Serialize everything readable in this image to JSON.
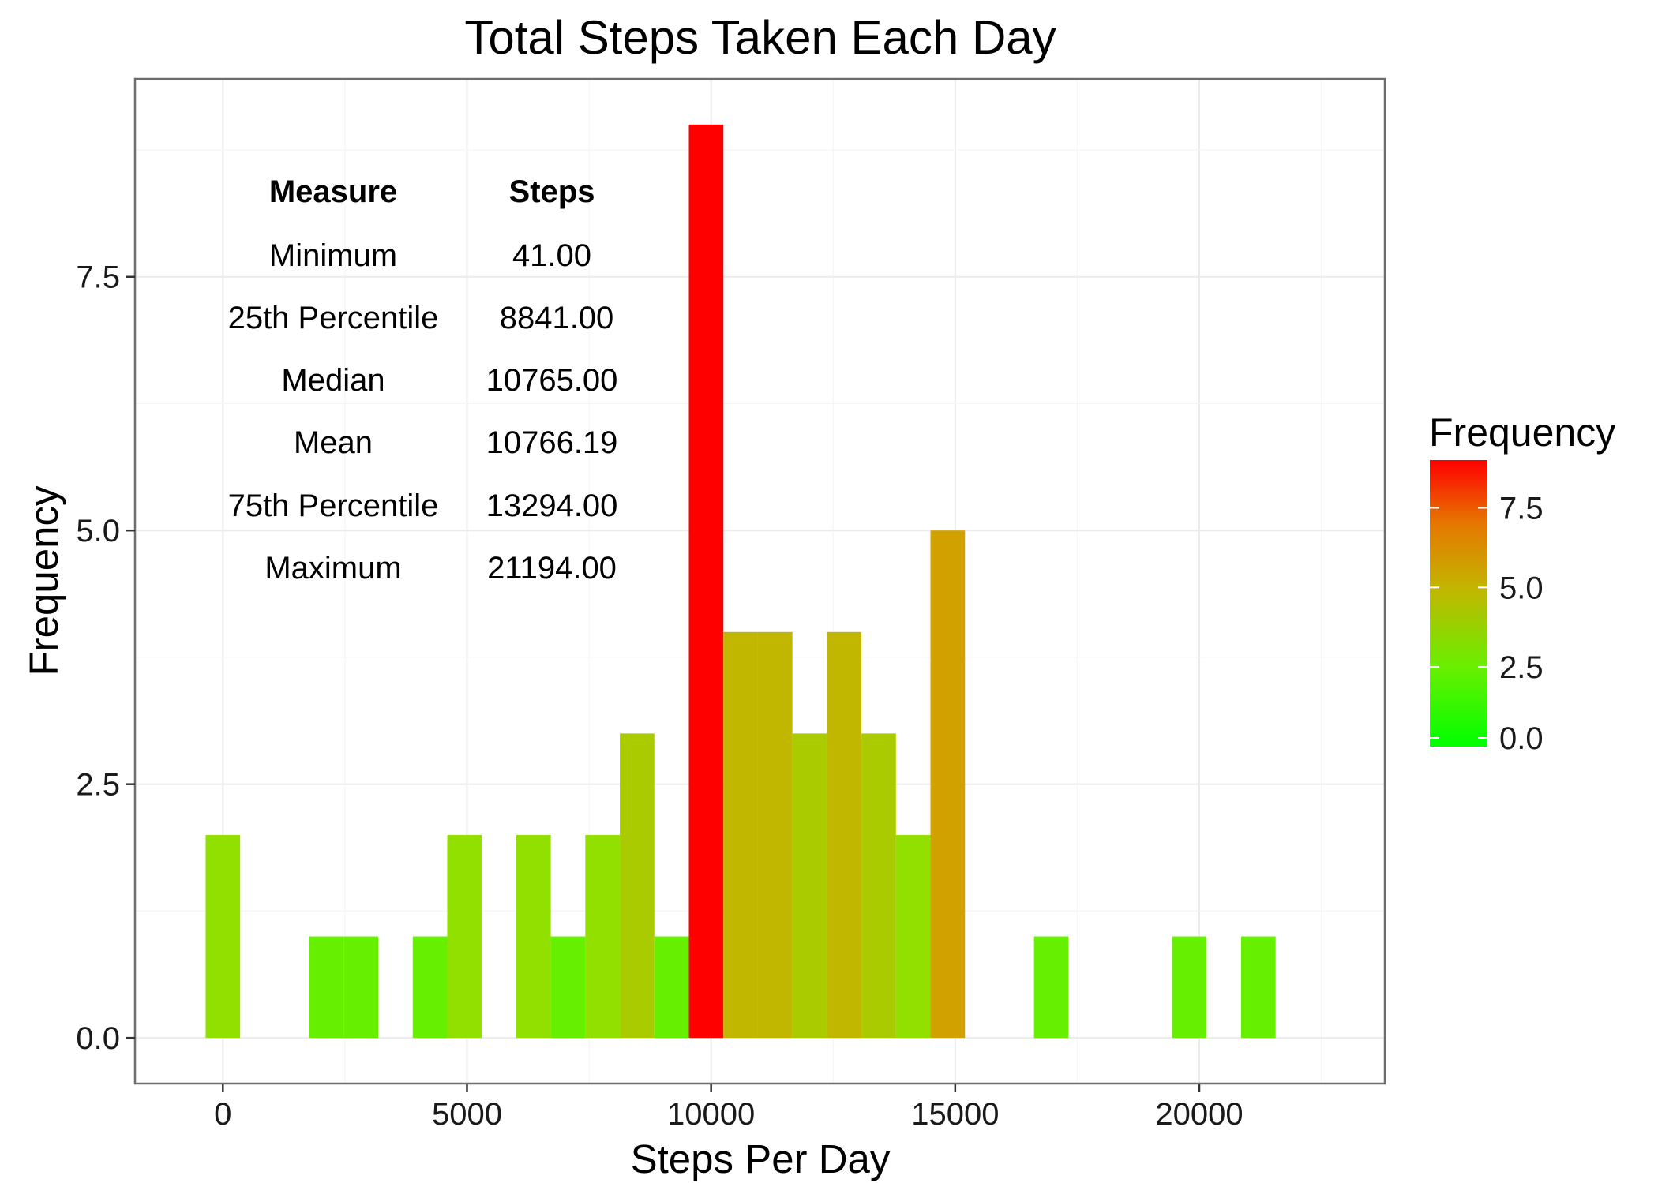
{
  "chart_data": {
    "type": "bar",
    "title": "Total Steps Taken Each Day",
    "xlabel": "Steps Per Day",
    "ylabel": "Frequency",
    "xlim": [
      -1800,
      23800
    ],
    "ylim": [
      -0.45,
      9.45
    ],
    "x_ticks": [
      0,
      5000,
      10000,
      15000,
      20000
    ],
    "y_ticks": [
      0,
      2.5,
      5,
      7.5
    ],
    "x_tick_labels": [
      "0",
      "5000",
      "10000",
      "15000",
      "20000"
    ],
    "y_tick_labels": [
      "0.0",
      "2.5",
      "5.0",
      "7.5"
    ],
    "bin_width": 707,
    "bins": [
      {
        "x": 0,
        "count": 2
      },
      {
        "x": 2121,
        "count": 1
      },
      {
        "x": 2828,
        "count": 1
      },
      {
        "x": 4242,
        "count": 1
      },
      {
        "x": 4949,
        "count": 2
      },
      {
        "x": 6363,
        "count": 2
      },
      {
        "x": 7070,
        "count": 1
      },
      {
        "x": 7777,
        "count": 2
      },
      {
        "x": 8484,
        "count": 3
      },
      {
        "x": 9191,
        "count": 1
      },
      {
        "x": 9898,
        "count": 9
      },
      {
        "x": 10605,
        "count": 4
      },
      {
        "x": 11312,
        "count": 4
      },
      {
        "x": 12019,
        "count": 3
      },
      {
        "x": 12726,
        "count": 4
      },
      {
        "x": 13433,
        "count": 3
      },
      {
        "x": 14140,
        "count": 2
      },
      {
        "x": 14847,
        "count": 5
      },
      {
        "x": 16968,
        "count": 1
      },
      {
        "x": 19796,
        "count": 1
      },
      {
        "x": 21210,
        "count": 1
      }
    ],
    "grid": true,
    "legend": {
      "title": "Frequency",
      "position": "right",
      "labels": [
        "0.0",
        "2.5",
        "5.0",
        "7.5"
      ],
      "values": [
        0,
        2.5,
        5,
        7.5
      ],
      "max": 9,
      "color_low": "#00ff00",
      "color_high": "#ff0000"
    },
    "annotation_table": {
      "headers": [
        "Measure",
        "Steps"
      ],
      "rows": [
        [
          "Minimum",
          "41.00"
        ],
        [
          "25th Percentile",
          "8841.00"
        ],
        [
          "Median",
          "10765.00"
        ],
        [
          "Mean",
          "10766.19"
        ],
        [
          "75th Percentile",
          "13294.00"
        ],
        [
          "Maximum",
          "21194.00"
        ]
      ]
    }
  },
  "colors": {
    "panel_border": "#6e6e6e",
    "grid_major": "#ebebeb",
    "grid_minor": "#f5f5f5"
  }
}
